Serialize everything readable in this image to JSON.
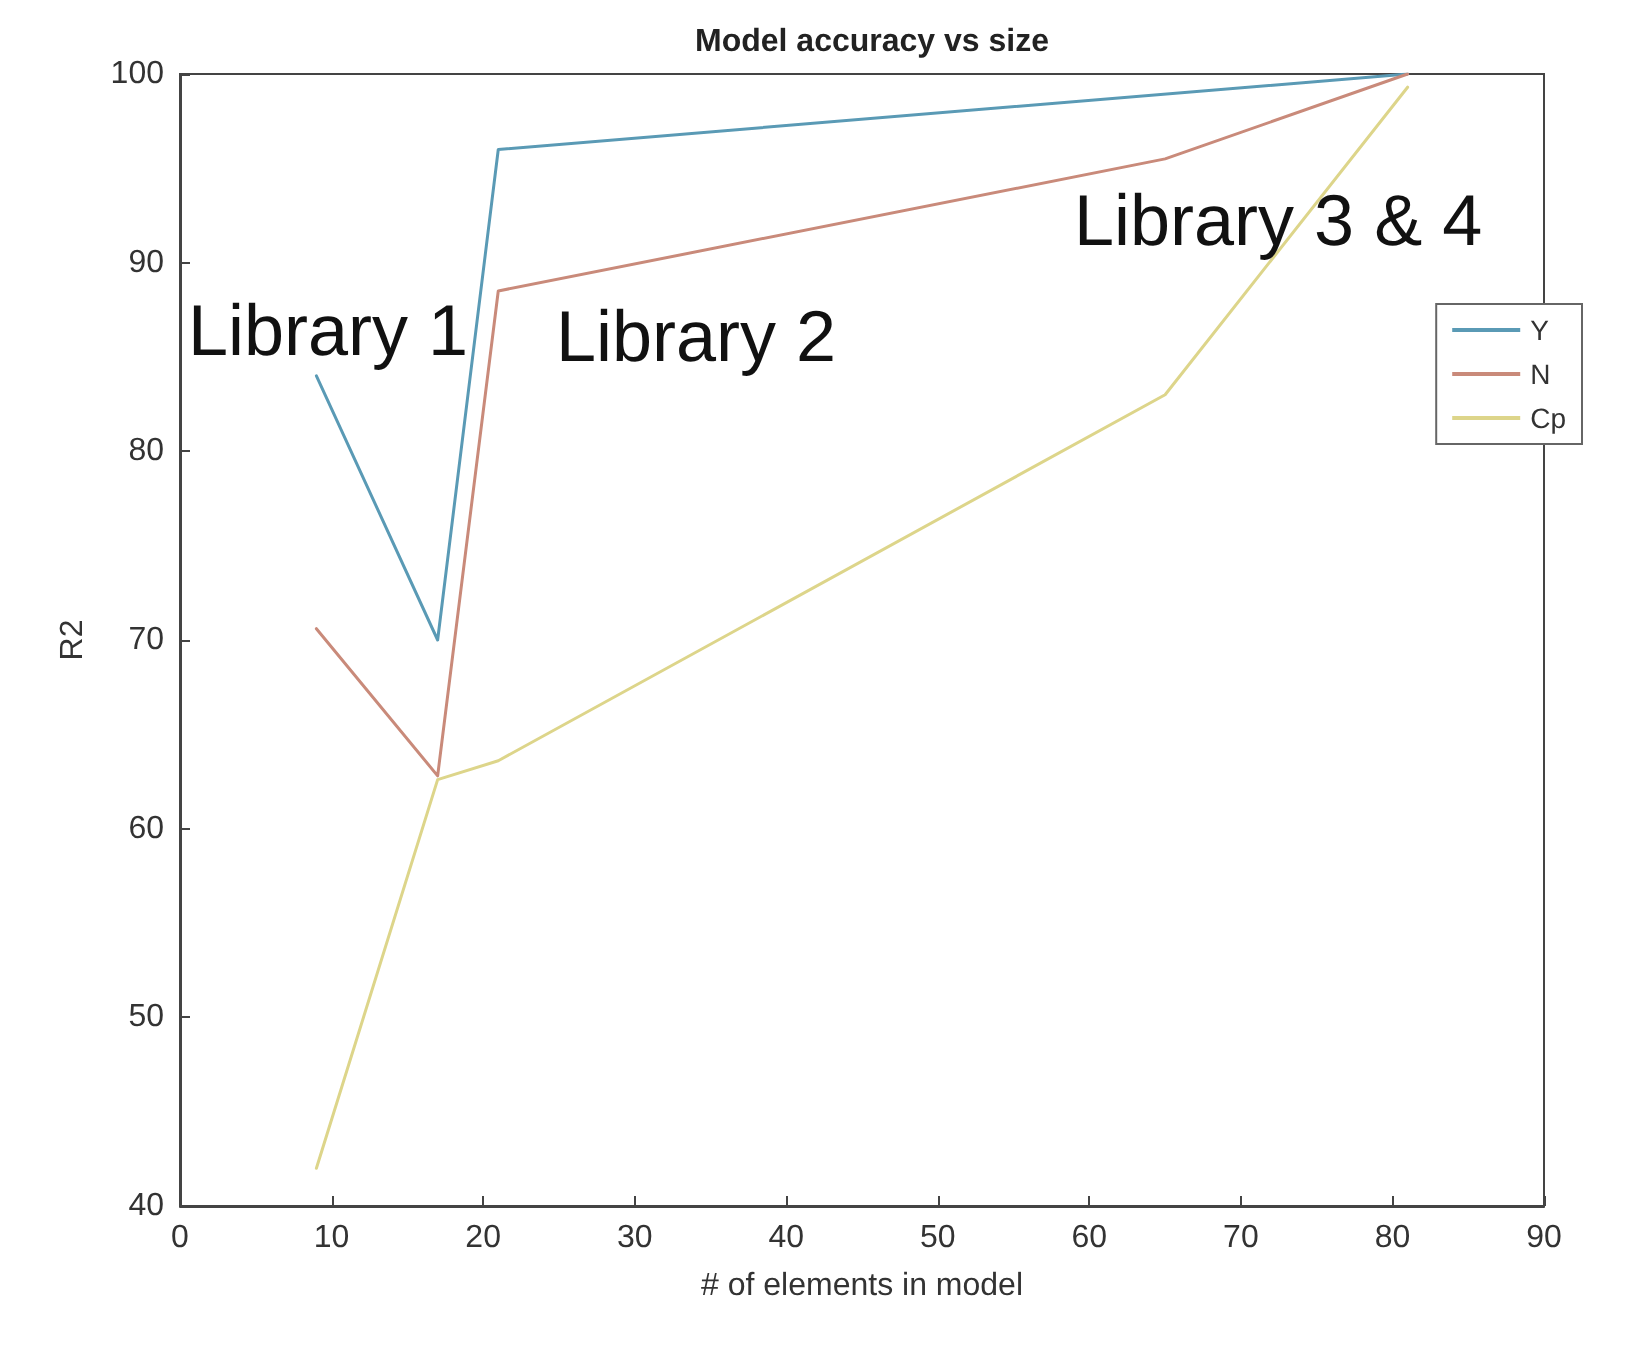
{
  "chart_data": {
    "type": "line",
    "title": "Model accuracy vs size",
    "xlabel": "# of elements in model",
    "ylabel": "R2",
    "x": [
      9,
      17,
      21,
      65,
      81
    ],
    "series": [
      {
        "name": "Y",
        "color": "#5a9ab5",
        "values": [
          84,
          70,
          96,
          null,
          100
        ]
      },
      {
        "name": "N",
        "color": "#c98a7a",
        "values": [
          70.6,
          62.8,
          88.5,
          95.5,
          100
        ]
      },
      {
        "name": "Cp",
        "color": "#ddd58a",
        "values": [
          42,
          62.6,
          63.6,
          83,
          99.3
        ]
      }
    ],
    "xlim": [
      0,
      90
    ],
    "xticks": [
      0,
      10,
      20,
      30,
      40,
      50,
      60,
      70,
      80,
      90
    ],
    "ylim": [
      40,
      100
    ],
    "yticks": [
      40,
      50,
      60,
      70,
      80,
      90,
      100
    ],
    "legend": "top right",
    "grid": false,
    "marker": "none",
    "line_style": "solid",
    "annotations": [
      "Library 1",
      "Library 2",
      "Library 3 & 4"
    ]
  }
}
